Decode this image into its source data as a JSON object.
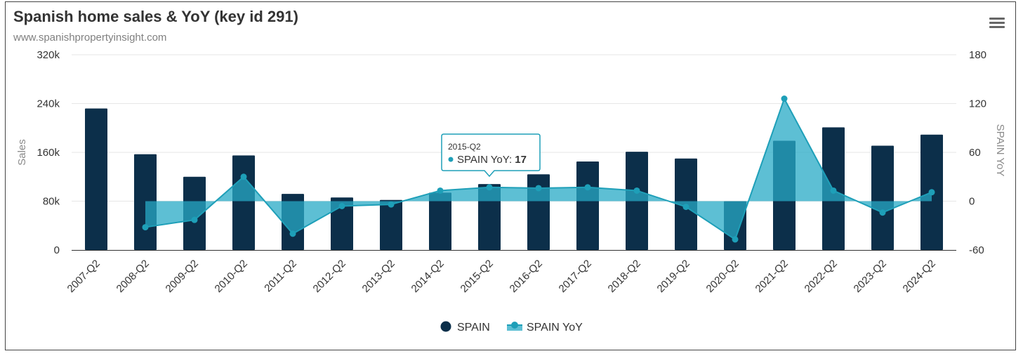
{
  "header": {
    "title": "Spanish home sales & YoY (key id 291)",
    "subtitle": "www.spanishpropertyinsight.com",
    "menu_icon": "hamburger-menu-icon"
  },
  "colors": {
    "bar": "#0c2f4a",
    "line": "#1e9fb8",
    "area_fill": "#27a9c6",
    "grid": "#e6e6e6",
    "axis": "#333333"
  },
  "chart_data": {
    "type": "bar+area",
    "title": "Spanish home sales & YoY (key id 291)",
    "categories": [
      "2007-Q2",
      "2008-Q2",
      "2009-Q2",
      "2010-Q2",
      "2011-Q2",
      "2012-Q2",
      "2013-Q2",
      "2014-Q2",
      "2015-Q2",
      "2016-Q2",
      "2017-Q2",
      "2018-Q2",
      "2019-Q2",
      "2020-Q2",
      "2021-Q2",
      "2022-Q2",
      "2023-Q2",
      "2024-Q2"
    ],
    "series": [
      {
        "name": "SPAIN",
        "type": "bar",
        "axis": "left",
        "values": [
          232000,
          157000,
          120000,
          155000,
          92000,
          86000,
          82000,
          94000,
          108000,
          124000,
          145000,
          161000,
          150000,
          80000,
          179000,
          201000,
          171000,
          189000
        ]
      },
      {
        "name": "SPAIN YoY",
        "type": "area",
        "axis": "right",
        "values": [
          null,
          -32,
          -23,
          30,
          -40,
          -6,
          -4,
          13,
          17,
          16,
          17,
          13,
          -7,
          -47,
          126,
          13,
          -14,
          11
        ]
      }
    ],
    "y_left": {
      "label": "Sales",
      "min": 0,
      "max": 320000,
      "ticks": [
        "0",
        "80k",
        "160k",
        "240k",
        "320k"
      ]
    },
    "y_right": {
      "label": "SPAIN YoY",
      "min": -60,
      "max": 180,
      "ticks": [
        "-60",
        "0",
        "60",
        "120",
        "180"
      ]
    },
    "legend": [
      "SPAIN",
      "SPAIN YoY"
    ],
    "legend_position": "bottom-center",
    "tooltip": {
      "category": "2015-Q2",
      "label": "SPAIN YoY: ",
      "value": "17"
    }
  }
}
